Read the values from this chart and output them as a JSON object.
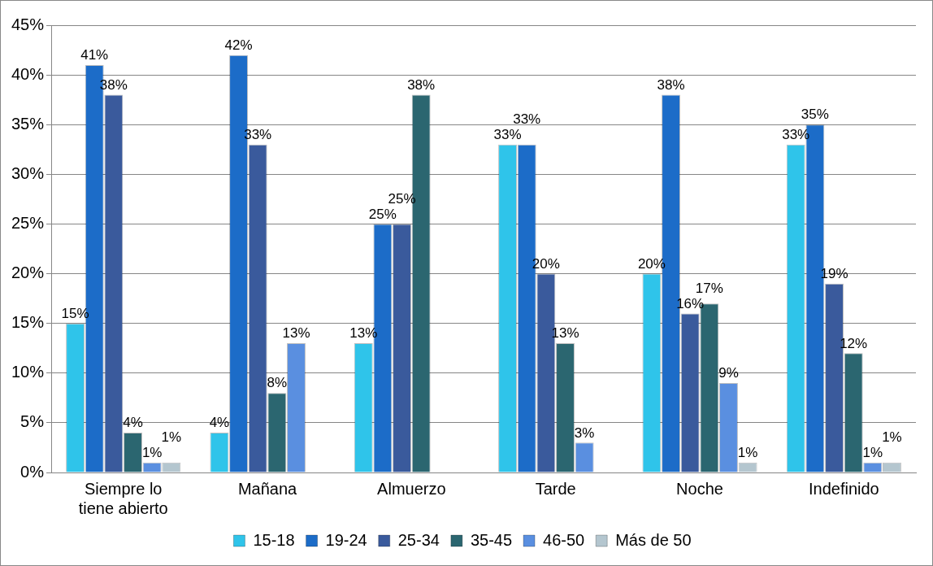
{
  "chart_data": {
    "type": "bar",
    "categories": [
      "Siempre lo tiene abierto",
      "Mañana",
      "Almuerzo",
      "Tarde",
      "Noche",
      "Indefinido"
    ],
    "series": [
      {
        "name": "15-18",
        "color": "#2fc4ea",
        "values": [
          15,
          4,
          13,
          33,
          20,
          33
        ],
        "value_labels": [
          "15%",
          "4%",
          "13%",
          "33%",
          "20%",
          "33%"
        ]
      },
      {
        "name": "19-24",
        "color": "#1c6cc8",
        "values": [
          41,
          42,
          25,
          33,
          38,
          35
        ],
        "value_labels": [
          "41%",
          "42%",
          "25%",
          "33%",
          "38%",
          "35%"
        ]
      },
      {
        "name": "25-34",
        "color": "#3a5a9c",
        "values": [
          38,
          33,
          25,
          20,
          16,
          19
        ],
        "value_labels": [
          "38%",
          "33%",
          "25%",
          "20%",
          "16%",
          "19%"
        ]
      },
      {
        "name": "35-45",
        "color": "#2b6670",
        "values": [
          4,
          8,
          38,
          13,
          17,
          12
        ],
        "value_labels": [
          "4%",
          "8%",
          "38%",
          "13%",
          "17%",
          "12%"
        ]
      },
      {
        "name": "46-50",
        "color": "#5a8fe0",
        "values": [
          1,
          13,
          null,
          3,
          9,
          1
        ],
        "value_labels": [
          "1%",
          "13%",
          null,
          "3%",
          "9%",
          "1%"
        ]
      },
      {
        "name": "Más de 50",
        "color": "#b4c6cf",
        "values": [
          1,
          null,
          null,
          null,
          1,
          1
        ],
        "value_labels": [
          "1%",
          null,
          null,
          null,
          "1%",
          "1%"
        ]
      }
    ],
    "ylim": [
      0,
      45
    ],
    "yticks": [
      {
        "value": 0,
        "label": "0%"
      },
      {
        "value": 5,
        "label": "5%"
      },
      {
        "value": 10,
        "label": "10%"
      },
      {
        "value": 15,
        "label": "15%"
      },
      {
        "value": 20,
        "label": "20%"
      },
      {
        "value": 25,
        "label": "25%"
      },
      {
        "value": 30,
        "label": "30%"
      },
      {
        "value": 35,
        "label": "35%"
      },
      {
        "value": 40,
        "label": "40%"
      },
      {
        "value": 45,
        "label": "45%"
      }
    ],
    "grid": "y",
    "legend": "bottom"
  }
}
